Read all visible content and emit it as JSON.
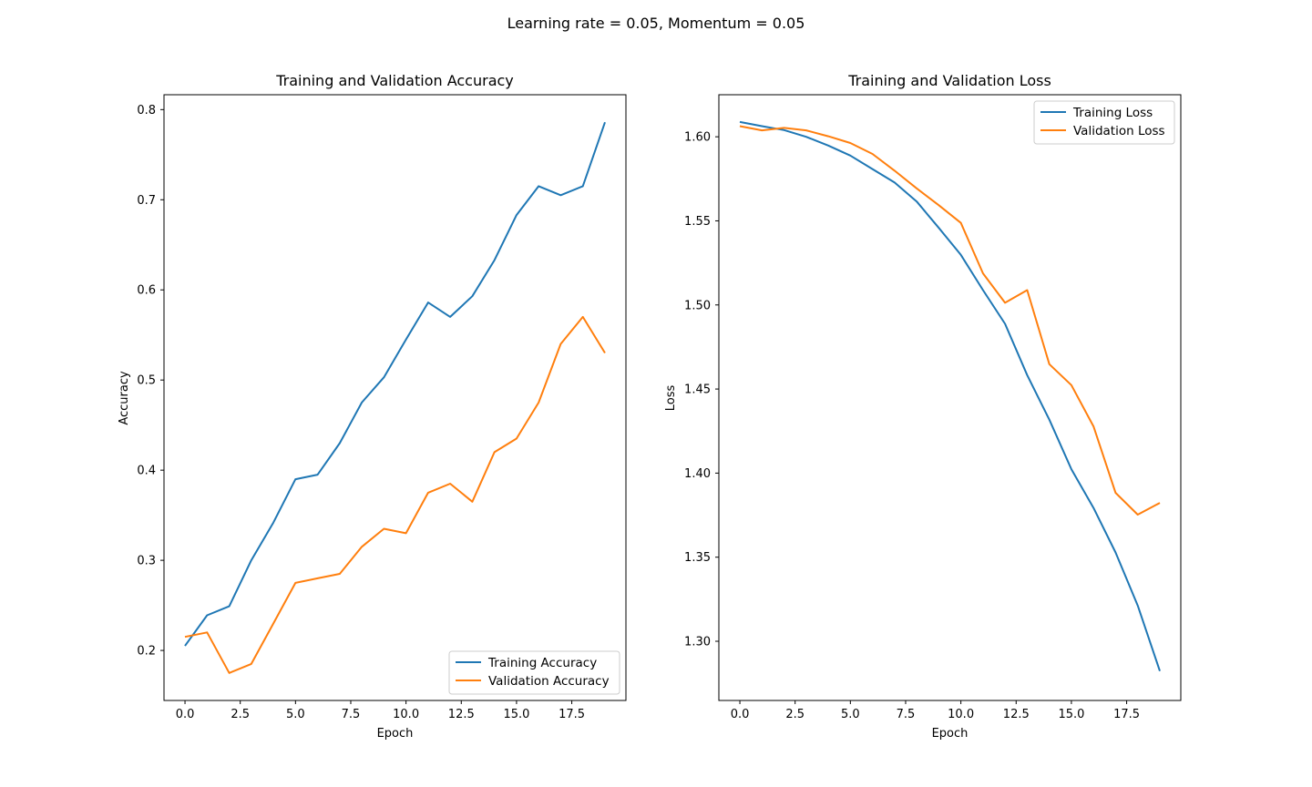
{
  "figure": {
    "suptitle": "Learning rate = 0.05, Momentum = 0.05",
    "colors": {
      "training": "#1f77b4",
      "validation": "#ff7f0e"
    }
  },
  "chart_data": [
    {
      "type": "line",
      "title": "Training and Validation Accuracy",
      "xlabel": "Epoch",
      "ylabel": "Accuracy",
      "xlim": [
        -0.95,
        19.95
      ],
      "ylim": [
        0.1445,
        0.8165
      ],
      "xticks": [
        0.0,
        2.5,
        5.0,
        7.5,
        10.0,
        12.5,
        15.0,
        17.5
      ],
      "xtick_labels": [
        "0.0",
        "2.5",
        "5.0",
        "7.5",
        "10.0",
        "12.5",
        "15.0",
        "17.5"
      ],
      "yticks": [
        0.2,
        0.3,
        0.4,
        0.5,
        0.6,
        0.7,
        0.8
      ],
      "ytick_labels": [
        "0.2",
        "0.3",
        "0.4",
        "0.5",
        "0.6",
        "0.7",
        "0.8"
      ],
      "grid": false,
      "legend": "lower-right",
      "x": [
        0,
        1,
        2,
        3,
        4,
        5,
        6,
        7,
        8,
        9,
        10,
        11,
        12,
        13,
        14,
        15,
        16,
        17,
        18,
        19
      ],
      "series": [
        {
          "name": "Training Accuracy",
          "color": "#1f77b4",
          "values": [
            0.205,
            0.239,
            0.249,
            0.3,
            0.342,
            0.39,
            0.395,
            0.43,
            0.475,
            0.503,
            0.545,
            0.586,
            0.57,
            0.593,
            0.633,
            0.683,
            0.715,
            0.705,
            0.715,
            0.786
          ]
        },
        {
          "name": "Validation Accuracy",
          "color": "#ff7f0e",
          "values": [
            0.215,
            0.22,
            0.175,
            0.185,
            0.23,
            0.275,
            0.28,
            0.285,
            0.315,
            0.335,
            0.33,
            0.375,
            0.385,
            0.365,
            0.42,
            0.435,
            0.475,
            0.54,
            0.57,
            0.53
          ]
        }
      ]
    },
    {
      "type": "line",
      "title": "Training and Validation Loss",
      "xlabel": "Epoch",
      "ylabel": "Loss",
      "xlim": [
        -0.95,
        19.95
      ],
      "ylim": [
        1.2648,
        1.625
      ],
      "xticks": [
        0.0,
        2.5,
        5.0,
        7.5,
        10.0,
        12.5,
        15.0,
        17.5
      ],
      "xtick_labels": [
        "0.0",
        "2.5",
        "5.0",
        "7.5",
        "10.0",
        "12.5",
        "15.0",
        "17.5"
      ],
      "yticks": [
        1.3,
        1.35,
        1.4,
        1.45,
        1.5,
        1.55,
        1.6
      ],
      "ytick_labels": [
        "1.30",
        "1.35",
        "1.40",
        "1.45",
        "1.50",
        "1.55",
        "1.60"
      ],
      "grid": false,
      "legend": "upper-right",
      "x": [
        0,
        1,
        2,
        3,
        4,
        5,
        6,
        7,
        8,
        9,
        10,
        11,
        12,
        13,
        14,
        15,
        16,
        17,
        18,
        19
      ],
      "series": [
        {
          "name": "Training Loss",
          "color": "#1f77b4",
          "values": [
            1.6088,
            1.6063,
            1.604,
            1.6,
            1.5948,
            1.5888,
            1.5808,
            1.5728,
            1.5615,
            1.5458,
            1.5298,
            1.5088,
            1.4888,
            1.4583,
            1.4318,
            1.4023,
            1.3793,
            1.3528,
            1.3213,
            1.2823
          ]
        },
        {
          "name": "Validation Loss",
          "color": "#ff7f0e",
          "values": [
            1.6063,
            1.6038,
            1.6053,
            1.6038,
            1.6003,
            1.5963,
            1.5898,
            1.5798,
            1.5693,
            1.5593,
            1.5488,
            1.5188,
            1.5013,
            1.5088,
            1.4648,
            1.4523,
            1.4278,
            1.3883,
            1.3753,
            1.3823
          ]
        }
      ]
    }
  ]
}
